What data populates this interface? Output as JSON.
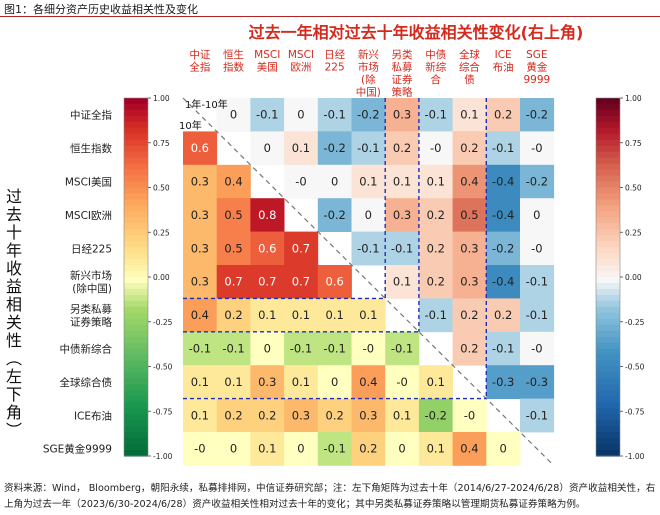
{
  "figure_title": "图1：各细分资产历史收益相关性及变化",
  "source_note": "资料来源：Wind， Bloomberg，朝阳永续，私募排排网，中信证券研究部；注：左下角矩阵为过去十年（2014/6/27-2024/6/28）资产收益相关性，右上角为过去一年（2023/6/30-2024/6/28）资产收益相关性相对过去十年的变化；其中另类私募证券策略以管理期货私募证券策略为例。",
  "chart_data": {
    "type": "heatmap",
    "title": "过去一年相对过去十年收益相关性变化(右上角)",
    "ylabel": "过去十年收益相关性（左下角）",
    "diag_label_upper": "1年-10年",
    "diag_label_lower": "10年",
    "col_labels": [
      "中证\n全指",
      "恒生\n指数",
      "MSCI\n美国",
      "MSCI\n欧洲",
      "日经\n225",
      "新兴\n市场\n(除\n中国)",
      "另类\n私募\n证券\n策略",
      "中债\n新综\n合",
      "全球\n综合\n债",
      "ICE\n布油",
      "SGE\n黄金\n9999"
    ],
    "row_labels": [
      "中证全指",
      "恒生指数",
      "MSCI美国",
      "MSCI欧洲",
      "日经225",
      "新兴市场\n(除中国)",
      "另类私募\n证券策略",
      "中债新综合",
      "全球综合债",
      "ICE布油",
      "SGE黄金9999"
    ],
    "matrix": [
      [
        null,
        "0",
        "-0.1",
        "0",
        "-0.1",
        "-0.2",
        "0.3",
        "-0.1",
        "0.1",
        "0.2",
        "-0.2"
      ],
      [
        "0.6",
        null,
        "0",
        "0.1",
        "-0.2",
        "-0.1",
        "0.2",
        "-0",
        "0.2",
        "-0.1",
        "-0"
      ],
      [
        "0.3",
        "0.4",
        null,
        "-0",
        "0",
        "0.1",
        "0.1",
        "0.1",
        "0.4",
        "-0.4",
        "-0.2"
      ],
      [
        "0.3",
        "0.5",
        "0.8",
        null,
        "-0.2",
        "0",
        "0.3",
        "0.2",
        "0.5",
        "-0.4",
        "0"
      ],
      [
        "0.3",
        "0.5",
        "0.6",
        "0.7",
        null,
        "-0.1",
        "-0.1",
        "0.2",
        "0.3",
        "-0.2",
        "-0"
      ],
      [
        "0.3",
        "0.7",
        "0.7",
        "0.7",
        "0.6",
        null,
        "0.1",
        "0.2",
        "0.3",
        "-0.4",
        "-0.1"
      ],
      [
        "0.4",
        "0.2",
        "0.1",
        "0.1",
        "0.1",
        "0.1",
        null,
        "-0.1",
        "0.2",
        "0.2",
        "-0.1"
      ],
      [
        "-0.1",
        "-0.1",
        "0",
        "-0.1",
        "-0.1",
        "-0",
        "-0.1",
        null,
        "0.2",
        "-0.1",
        "-0"
      ],
      [
        "0.1",
        "0.1",
        "0.3",
        "0.1",
        "0",
        "0.4",
        "-0",
        "0.1",
        null,
        "-0.3",
        "-0.3"
      ],
      [
        "0.1",
        "0.2",
        "0.2",
        "0.3",
        "0.2",
        "0.3",
        "0.1",
        "-0.2",
        "-0",
        null,
        "-0.1"
      ],
      [
        "-0",
        "0",
        "0.1",
        "0",
        "-0.1",
        "0.2",
        "0",
        "0.1",
        "0.4",
        "0",
        null
      ]
    ],
    "colorbar_left": {
      "range": [
        -1,
        1
      ],
      "ticks": [
        "1.00",
        "0.75",
        "0.50",
        "0.25",
        "0.00",
        "-0.25",
        "-0.50",
        "-0.75",
        "-1.00"
      ]
    },
    "colorbar_right": {
      "range": [
        -1,
        1
      ],
      "ticks": [
        "1.00",
        "0.75",
        "0.50",
        "0.25",
        "0.00",
        "-0.25",
        "-0.50",
        "-0.75",
        "-1.00"
      ]
    },
    "lower_colormap": "RdYlGn",
    "upper_colormap": "RdBu",
    "title_color": "#d42a1e",
    "col_label_color": "#d42a1e",
    "separator_color": "#1f2fb8",
    "diagonal_color": "#777777"
  }
}
